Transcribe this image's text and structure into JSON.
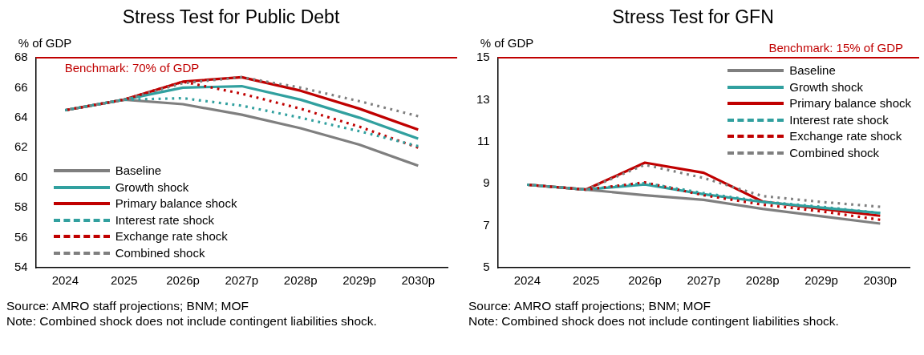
{
  "chart_data": [
    {
      "type": "line",
      "title": "Stress Test for Public Debt",
      "ylabel": "% of GDP",
      "categories": [
        "2024",
        "2025",
        "2026p",
        "2027p",
        "2028p",
        "2029p",
        "2030p"
      ],
      "series": [
        {
          "name": "Baseline",
          "color": "#7f7f7f",
          "line_style": "solid",
          "values": [
            64.5,
            65.2,
            64.9,
            64.2,
            63.3,
            62.2,
            60.8
          ]
        },
        {
          "name": "Growth shock",
          "color": "#31a09f",
          "line_style": "solid",
          "values": [
            64.5,
            65.2,
            66.0,
            66.1,
            65.2,
            64.0,
            62.6
          ]
        },
        {
          "name": "Primary balance shock",
          "color": "#c00000",
          "line_style": "solid",
          "values": [
            64.5,
            65.2,
            66.4,
            66.7,
            65.8,
            64.6,
            63.2
          ]
        },
        {
          "name": "Interest rate shock",
          "color": "#31a09f",
          "line_style": "dashed",
          "values": [
            64.5,
            65.2,
            65.3,
            64.8,
            64.0,
            63.1,
            62.1
          ]
        },
        {
          "name": "Exchange rate shock",
          "color": "#c00000",
          "line_style": "dashed",
          "values": [
            64.5,
            65.2,
            66.4,
            65.6,
            64.6,
            63.4,
            62.0
          ]
        },
        {
          "name": "Combined shock",
          "color": "#7f7f7f",
          "line_style": "dashed",
          "values": [
            64.5,
            65.2,
            66.3,
            66.7,
            66.0,
            65.1,
            64.1
          ]
        }
      ],
      "ylim": [
        54,
        68
      ],
      "yticks": [
        54,
        56,
        58,
        60,
        62,
        64,
        66,
        68
      ],
      "grid": false,
      "legend": "bottom left",
      "marker": "none",
      "ref_lines": [
        {
          "axis": "y",
          "value": 68,
          "color": "#c00000"
        }
      ],
      "annotations": [
        {
          "text": "Benchmark: 70% of GDP",
          "y": 68
        },
        "Source: AMRO staff projections; BNM; MOF",
        "Note: Combined shock does not include contingent liabilities shock."
      ]
    },
    {
      "type": "line",
      "title": "Stress Test for GFN",
      "ylabel": "% of GDP",
      "categories": [
        "2024",
        "2025",
        "2026p",
        "2027p",
        "2028p",
        "2029p",
        "2030p"
      ],
      "series": [
        {
          "name": "Baseline",
          "color": "#7f7f7f",
          "line_style": "solid",
          "values": [
            8.95,
            8.72,
            8.45,
            8.23,
            7.8,
            7.45,
            7.1
          ]
        },
        {
          "name": "Growth shock",
          "color": "#31a09f",
          "line_style": "solid",
          "values": [
            8.95,
            8.72,
            8.96,
            8.5,
            8.13,
            7.86,
            7.6
          ]
        },
        {
          "name": "Primary balance shock",
          "color": "#c00000",
          "line_style": "solid",
          "values": [
            8.95,
            8.72,
            10.0,
            9.52,
            8.15,
            7.8,
            7.47
          ]
        },
        {
          "name": "Interest rate shock",
          "color": "#31a09f",
          "line_style": "dashed",
          "values": [
            8.95,
            8.72,
            9.03,
            8.55,
            8.15,
            7.9,
            7.6
          ]
        },
        {
          "name": "Exchange rate shock",
          "color": "#c00000",
          "line_style": "dashed",
          "values": [
            8.95,
            8.72,
            9.06,
            8.45,
            8.0,
            7.68,
            7.28
          ]
        },
        {
          "name": "Combined shock",
          "color": "#7f7f7f",
          "line_style": "dashed",
          "values": [
            8.95,
            8.72,
            9.9,
            9.27,
            8.41,
            8.13,
            7.9
          ]
        }
      ],
      "ylim": [
        5,
        15
      ],
      "yticks": [
        5,
        7,
        9,
        11,
        13,
        15
      ],
      "grid": false,
      "legend": "top right",
      "marker": "none",
      "ref_lines": [
        {
          "axis": "y",
          "value": 15,
          "label": "Benchmark: 15% of GDP",
          "color": "#c00000"
        }
      ],
      "annotations": [
        "Source: AMRO staff projections; BNM; MOF",
        "Note: Combined shock does not include contingent liabilities shock."
      ]
    }
  ]
}
